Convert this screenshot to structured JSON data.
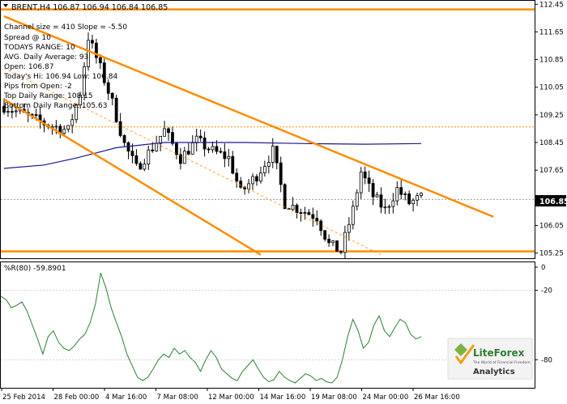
{
  "header": {
    "symbol_line": "BRENT,H4  106.87 106.94 106.84 106.85"
  },
  "info_lines": [
    "Channel size = 410 Slope = -5.50",
    "Spread @ 10",
    "TODAYS RANGE: 10",
    "AVG. Daily Average: 93",
    "Open: 106.87",
    "Today's Hi: 106.94  Low: 106.84",
    "Pips from Open: -2",
    "Top Daily Range: 108.15",
    "Bottom Daily Range: 105.63"
  ],
  "current_price_label": "106.85",
  "indicator_label": "%R(80) -59.8901",
  "logo": {
    "brand": "LiteForex",
    "tagline": "The World of Financial Freedom",
    "sub": "Analytics"
  },
  "colors": {
    "candle": "#000000",
    "channel": "#ff8c00",
    "ma": "#1a1a8c",
    "wpr": "#2e7d32",
    "level_dotted": "#ff8c00",
    "grid": "#000000"
  },
  "chart_data": [
    {
      "type": "candlestick",
      "symbol": "BRENT",
      "timeframe": "H4",
      "y_ticks": [
        112.45,
        111.65,
        110.85,
        110.05,
        109.25,
        108.45,
        107.65,
        106.05,
        105.25
      ],
      "ylim": [
        105.1,
        112.55
      ],
      "current_price": 106.85,
      "x_ticks": [
        "25 Feb 2014",
        "28 Feb 00:00",
        "4 Mar 16:00",
        "7 Mar 08:00",
        "12 Mar 00:00",
        "14 Mar 16:00",
        "19 Mar 08:00",
        "24 Mar 00:00",
        "26 Mar 16:00"
      ],
      "horizontal_levels": [
        112.3,
        105.3
      ],
      "dotted_levels": [
        108.9,
        106.8
      ],
      "channel_upper": [
        [
          0,
          112.1
        ],
        [
          122,
          106.3
        ]
      ],
      "channel_lower": [
        [
          0,
          109.7
        ],
        [
          64,
          105.2
        ]
      ],
      "channel_mid_dashed": [
        [
          0,
          110.6
        ],
        [
          94,
          105.2
        ]
      ],
      "moving_average": [
        [
          0,
          107.7
        ],
        [
          10,
          107.8
        ],
        [
          18,
          108.0
        ],
        [
          28,
          108.3
        ],
        [
          40,
          108.45
        ],
        [
          60,
          108.45
        ],
        [
          75,
          108.42
        ],
        [
          90,
          108.4
        ],
        [
          104,
          108.42
        ]
      ],
      "close_path": [
        [
          0,
          109.5
        ],
        [
          4,
          109.3
        ],
        [
          10,
          109.0
        ],
        [
          16,
          108.8
        ],
        [
          19,
          109.9
        ],
        [
          21,
          111.5
        ],
        [
          24,
          110.6
        ],
        [
          27,
          109.6
        ],
        [
          30,
          108.4
        ],
        [
          33,
          107.7
        ],
        [
          37,
          108.3
        ],
        [
          40,
          108.8
        ],
        [
          44,
          108.0
        ],
        [
          48,
          108.5
        ],
        [
          52,
          108.2
        ],
        [
          56,
          108.0
        ],
        [
          59,
          107.0
        ],
        [
          63,
          107.5
        ],
        [
          67,
          108.2
        ],
        [
          70,
          106.7
        ],
        [
          74,
          106.5
        ],
        [
          78,
          106.3
        ],
        [
          81,
          105.5
        ],
        [
          84,
          105.3
        ],
        [
          87,
          106.5
        ],
        [
          89,
          107.6
        ],
        [
          92,
          106.9
        ],
        [
          95,
          106.5
        ],
        [
          98,
          107.1
        ],
        [
          101,
          106.7
        ],
        [
          104,
          106.85
        ]
      ],
      "wpr_ylim": [
        -100,
        0
      ],
      "wpr_ticks": [
        0,
        -20,
        -80
      ],
      "wpr_values": [
        -25,
        -28,
        -35,
        -33,
        -30,
        -38,
        -50,
        -62,
        -75,
        -60,
        -55,
        -65,
        -70,
        -72,
        -68,
        -62,
        -58,
        -48,
        -32,
        -5,
        -18,
        -35,
        -48,
        -60,
        -75,
        -85,
        -95,
        -98,
        -95,
        -88,
        -80,
        -75,
        -78,
        -70,
        -75,
        -72,
        -78,
        -82,
        -90,
        -80,
        -72,
        -78,
        -88,
        -92,
        -96,
        -98,
        -90,
        -85,
        -80,
        -88,
        -95,
        -99,
        -97,
        -90,
        -95,
        -98,
        -100,
        -96,
        -92,
        -94,
        -98,
        -96,
        -99,
        -100,
        -95,
        -80,
        -60,
        -45,
        -55,
        -70,
        -65,
        -50,
        -42,
        -55,
        -60,
        -52,
        -45,
        -48,
        -58,
        -62,
        -60
      ]
    }
  ]
}
